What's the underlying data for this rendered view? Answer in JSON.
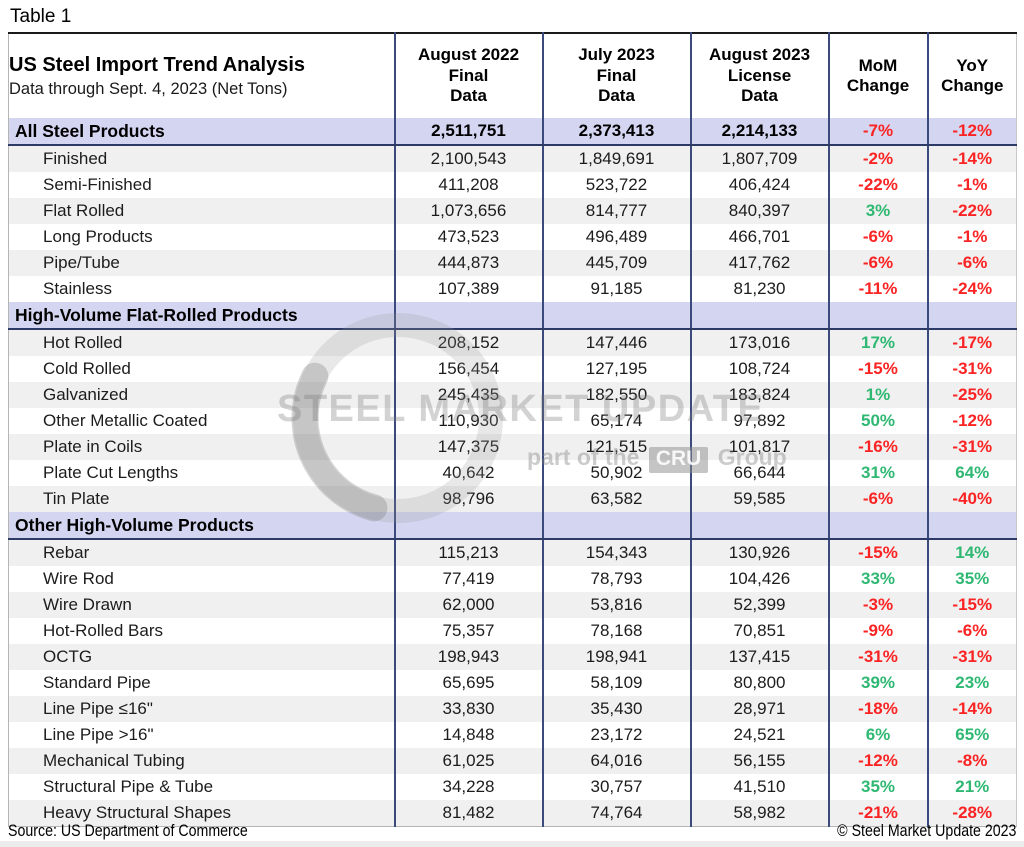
{
  "page": {
    "label": "Table 1",
    "source": "Source: US Department of Commerce",
    "copyright": "© Steel Market Update 2023"
  },
  "watermark": {
    "brand": "STEEL MARKET UPDATE",
    "tagline_prefix": "part of the",
    "tagline_box": "CRU",
    "tagline_suffix": "Group"
  },
  "chart_data": {
    "type": "table",
    "title": "US Steel Import Trend Analysis",
    "subtitle": "Data through Sept. 4, 2023 (Net Tons)",
    "columns": [
      [
        "August 2022",
        "Final",
        "Data"
      ],
      [
        "July 2023",
        "Final",
        "Data"
      ],
      [
        "August 2023",
        "License",
        "Data"
      ],
      [
        "MoM",
        "Change"
      ],
      [
        "YoY",
        "Change"
      ]
    ],
    "sections": [
      {
        "header": "All Steel Products",
        "header_values": [
          "2,511,751",
          "2,373,413",
          "2,214,133",
          "-7%",
          "-12%"
        ],
        "rows": [
          [
            "Finished",
            "2,100,543",
            "1,849,691",
            "1,807,709",
            "-2%",
            "-14%"
          ],
          [
            "Semi-Finished",
            "411,208",
            "523,722",
            "406,424",
            "-22%",
            "-1%"
          ],
          [
            "Flat Rolled",
            "1,073,656",
            "814,777",
            "840,397",
            "3%",
            "-22%"
          ],
          [
            "Long Products",
            "473,523",
            "496,489",
            "466,701",
            "-6%",
            "-1%"
          ],
          [
            "Pipe/Tube",
            "444,873",
            "445,709",
            "417,762",
            "-6%",
            "-6%"
          ],
          [
            "Stainless",
            "107,389",
            "91,185",
            "81,230",
            "-11%",
            "-24%"
          ]
        ]
      },
      {
        "header": "High-Volume Flat-Rolled Products",
        "header_values": [
          "",
          "",
          "",
          "",
          ""
        ],
        "rows": [
          [
            "Hot Rolled",
            "208,152",
            "147,446",
            "173,016",
            "17%",
            "-17%"
          ],
          [
            "Cold Rolled",
            "156,454",
            "127,195",
            "108,724",
            "-15%",
            "-31%"
          ],
          [
            "Galvanized",
            "245,435",
            "182,550",
            "183,824",
            "1%",
            "-25%"
          ],
          [
            "Other Metallic Coated",
            "110,930",
            "65,174",
            "97,892",
            "50%",
            "-12%"
          ],
          [
            "Plate in Coils",
            "147,375",
            "121,515",
            "101,817",
            "-16%",
            "-31%"
          ],
          [
            "Plate Cut Lengths",
            "40,642",
            "50,902",
            "66,644",
            "31%",
            "64%"
          ],
          [
            "Tin Plate",
            "98,796",
            "63,582",
            "59,585",
            "-6%",
            "-40%"
          ]
        ]
      },
      {
        "header": "Other High-Volume Products",
        "header_values": [
          "",
          "",
          "",
          "",
          ""
        ],
        "rows": [
          [
            "Rebar",
            "115,213",
            "154,343",
            "130,926",
            "-15%",
            "14%"
          ],
          [
            "Wire Rod",
            "77,419",
            "78,793",
            "104,426",
            "33%",
            "35%"
          ],
          [
            "Wire Drawn",
            "62,000",
            "53,816",
            "52,399",
            "-3%",
            "-15%"
          ],
          [
            "Hot-Rolled Bars",
            "75,357",
            "78,168",
            "70,851",
            "-9%",
            "-6%"
          ],
          [
            "OCTG",
            "198,943",
            "198,941",
            "137,415",
            "-31%",
            "-31%"
          ],
          [
            "Standard Pipe",
            "65,695",
            "58,109",
            "80,800",
            "39%",
            "23%"
          ],
          [
            "Line Pipe ≤16\"",
            "33,830",
            "35,430",
            "28,971",
            "-18%",
            "-14%"
          ],
          [
            "Line Pipe >16\"",
            "14,848",
            "23,172",
            "24,521",
            "6%",
            "65%"
          ],
          [
            "Mechanical Tubing",
            "61,025",
            "64,016",
            "56,155",
            "-12%",
            "-8%"
          ],
          [
            "Structural Pipe & Tube",
            "34,228",
            "30,757",
            "41,510",
            "35%",
            "21%"
          ],
          [
            "Heavy Structural Shapes",
            "81,482",
            "74,764",
            "58,982",
            "-21%",
            "-28%"
          ]
        ]
      }
    ],
    "colors": {
      "positive": "#2fb872",
      "negative": "#fb2323",
      "section_background": "#d4d6f1",
      "column_border": "#3a4a7c",
      "row_stripe": "#f0f0f0"
    }
  }
}
